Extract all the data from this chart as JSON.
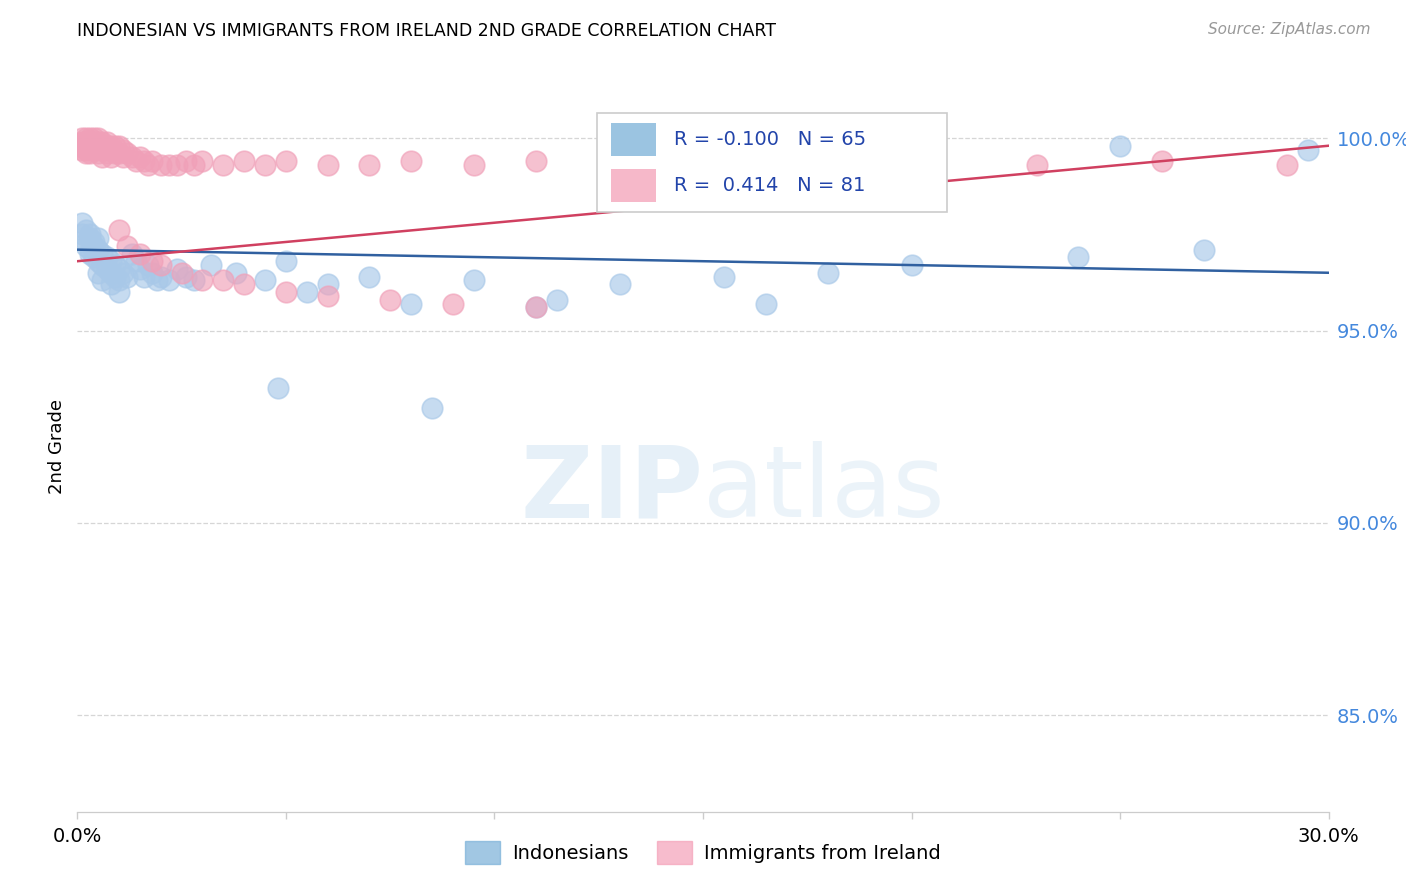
{
  "title": "INDONESIAN VS IMMIGRANTS FROM IRELAND 2ND GRADE CORRELATION CHART",
  "source": "Source: ZipAtlas.com",
  "ylabel": "2nd Grade",
  "yticks_labels": [
    "100.0%",
    "95.0%",
    "90.0%",
    "85.0%"
  ],
  "ytick_values": [
    1.0,
    0.95,
    0.9,
    0.85
  ],
  "xlim": [
    0.0,
    0.3
  ],
  "ylim": [
    0.825,
    1.015
  ],
  "blue_color": "#a8c8e8",
  "pink_color": "#f0a0b8",
  "blue_line_color": "#3060a0",
  "pink_line_color": "#d04060",
  "blue_legend_color": "#7ab0d8",
  "pink_legend_color": "#f4a0b8",
  "indonesians_x": [
    0.001,
    0.001,
    0.002,
    0.002,
    0.002,
    0.003,
    0.003,
    0.003,
    0.003,
    0.004,
    0.004,
    0.004,
    0.005,
    0.005,
    0.005,
    0.005,
    0.006,
    0.006,
    0.006,
    0.007,
    0.007,
    0.008,
    0.008,
    0.008,
    0.009,
    0.009,
    0.01,
    0.01,
    0.01,
    0.011,
    0.012,
    0.013,
    0.014,
    0.015,
    0.016,
    0.017,
    0.018,
    0.019,
    0.02,
    0.022,
    0.024,
    0.026,
    0.028,
    0.032,
    0.038,
    0.045,
    0.05,
    0.055,
    0.06,
    0.07,
    0.08,
    0.095,
    0.11,
    0.13,
    0.155,
    0.18,
    0.2,
    0.24,
    0.27,
    0.295,
    0.048,
    0.085,
    0.115,
    0.165,
    0.25
  ],
  "indonesians_y": [
    0.975,
    0.978,
    0.973,
    0.976,
    0.972,
    0.974,
    0.971,
    0.975,
    0.97,
    0.973,
    0.969,
    0.972,
    0.974,
    0.971,
    0.968,
    0.965,
    0.97,
    0.967,
    0.963,
    0.969,
    0.966,
    0.968,
    0.965,
    0.962,
    0.967,
    0.964,
    0.966,
    0.963,
    0.96,
    0.965,
    0.964,
    0.97,
    0.968,
    0.966,
    0.964,
    0.967,
    0.965,
    0.963,
    0.964,
    0.963,
    0.966,
    0.964,
    0.963,
    0.967,
    0.965,
    0.963,
    0.968,
    0.96,
    0.962,
    0.964,
    0.957,
    0.963,
    0.956,
    0.962,
    0.964,
    0.965,
    0.967,
    0.969,
    0.971,
    0.997,
    0.935,
    0.93,
    0.958,
    0.957,
    0.998
  ],
  "ireland_x": [
    0.001,
    0.001,
    0.001,
    0.001,
    0.002,
    0.002,
    0.002,
    0.002,
    0.002,
    0.003,
    0.003,
    0.003,
    0.003,
    0.003,
    0.004,
    0.004,
    0.004,
    0.004,
    0.005,
    0.005,
    0.005,
    0.005,
    0.006,
    0.006,
    0.006,
    0.006,
    0.007,
    0.007,
    0.007,
    0.008,
    0.008,
    0.008,
    0.009,
    0.009,
    0.01,
    0.01,
    0.011,
    0.011,
    0.012,
    0.013,
    0.014,
    0.015,
    0.016,
    0.017,
    0.018,
    0.02,
    0.022,
    0.024,
    0.026,
    0.028,
    0.03,
    0.035,
    0.04,
    0.045,
    0.05,
    0.06,
    0.07,
    0.08,
    0.095,
    0.11,
    0.13,
    0.15,
    0.17,
    0.2,
    0.23,
    0.26,
    0.29,
    0.01,
    0.012,
    0.015,
    0.018,
    0.02,
    0.025,
    0.03,
    0.035,
    0.04,
    0.05,
    0.06,
    0.075,
    0.09,
    0.11
  ],
  "ireland_y": [
    0.997,
    0.999,
    0.998,
    1.0,
    0.998,
    1.0,
    0.999,
    0.997,
    0.996,
    0.999,
    1.0,
    0.998,
    0.997,
    0.996,
    0.999,
    1.0,
    0.998,
    0.997,
    0.999,
    1.0,
    0.998,
    0.996,
    0.999,
    0.998,
    0.997,
    0.995,
    0.999,
    0.998,
    0.996,
    0.998,
    0.997,
    0.995,
    0.998,
    0.996,
    0.998,
    0.996,
    0.997,
    0.995,
    0.996,
    0.995,
    0.994,
    0.995,
    0.994,
    0.993,
    0.994,
    0.993,
    0.993,
    0.993,
    0.994,
    0.993,
    0.994,
    0.993,
    0.994,
    0.993,
    0.994,
    0.993,
    0.993,
    0.994,
    0.993,
    0.994,
    0.994,
    0.994,
    0.993,
    0.994,
    0.993,
    0.994,
    0.993,
    0.976,
    0.972,
    0.97,
    0.968,
    0.967,
    0.965,
    0.963,
    0.963,
    0.962,
    0.96,
    0.959,
    0.958,
    0.957,
    0.956
  ],
  "grid_color": "#cccccc",
  "spine_color": "#cccccc"
}
